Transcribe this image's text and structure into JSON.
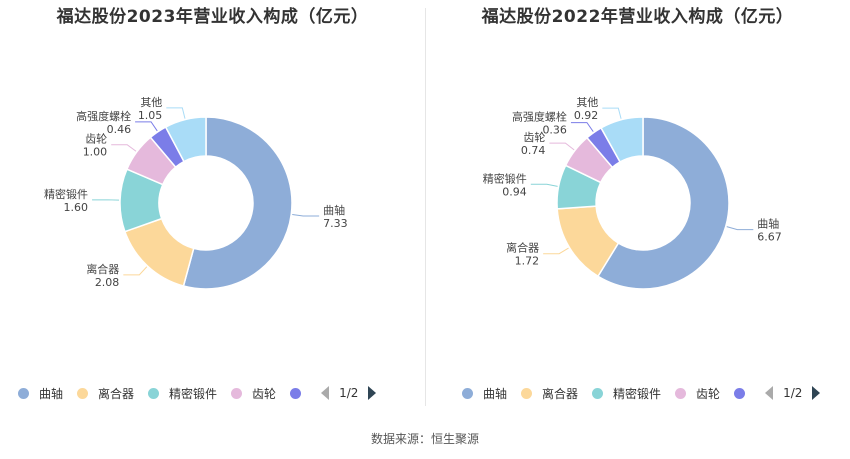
{
  "colors": [
    "#8eadd8",
    "#fcd89a",
    "#89d4d7",
    "#e5b9dc",
    "#7b7de8",
    "#a9dcf7"
  ],
  "source": "数据来源：恒生聚源",
  "chart_data": [
    {
      "type": "pie",
      "title": "福达股份2023年营业收入构成（亿元）",
      "categories": [
        "曲轴",
        "离合器",
        "精密锻件",
        "齿轮",
        "高强度螺栓",
        "其他"
      ],
      "values": [
        7.33,
        2.08,
        1.6,
        1.0,
        0.46,
        1.05
      ],
      "value_labels": [
        "7.33",
        "2.08",
        "1.60",
        "1.00",
        "0.46",
        "1.05"
      ],
      "legend": {
        "placement": "bottom",
        "visible_items": [
          "曲轴",
          "离合器",
          "精密锻件",
          "齿轮",
          ""
        ],
        "page": "1/2"
      }
    },
    {
      "type": "pie",
      "title": "福达股份2022年营业收入构成（亿元）",
      "categories": [
        "曲轴",
        "离合器",
        "精密锻件",
        "齿轮",
        "高强度螺栓",
        "其他"
      ],
      "values": [
        6.67,
        1.72,
        0.94,
        0.74,
        0.36,
        0.92
      ],
      "value_labels": [
        "6.67",
        "1.72",
        "0.94",
        "0.74",
        "0.36",
        "0.92"
      ],
      "legend": {
        "placement": "bottom",
        "visible_items": [
          "曲轴",
          "离合器",
          "精密锻件",
          "齿轮",
          ""
        ],
        "page": "1/2"
      }
    }
  ]
}
